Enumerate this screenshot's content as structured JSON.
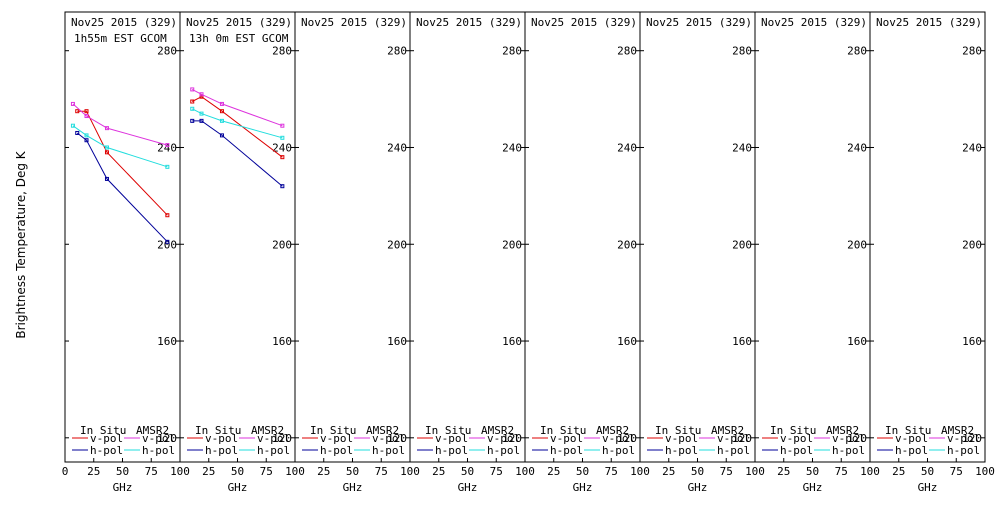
{
  "colors": {
    "insitu_v": "#dd0000",
    "insitu_h": "#000099",
    "amsr2_v": "#dd33dd",
    "amsr2_h": "#22dddd",
    "frame": "#000000",
    "background": "#ffffff"
  },
  "legend": {
    "insitu_header": "In Situ",
    "amsr2_header": "AMSR2",
    "v_label": "v-pol",
    "h_label": "h-pol"
  },
  "chart_data": {
    "type": "line",
    "ylabel": "Brightness Temperature, Deg K",
    "xlabel": "GHz",
    "xlim": [
      0,
      100
    ],
    "ylim": [
      110,
      296
    ],
    "xticks": [
      0,
      25,
      50,
      75,
      100
    ],
    "yticks": [
      120,
      160,
      200,
      240,
      280
    ],
    "grid": false,
    "legend_position": "bottom",
    "panels": [
      {
        "title": "Nov25 2015 (329)",
        "subtitle": "1h55m EST GCOM",
        "series": [
          {
            "key": "insitu_v",
            "name": "In Situ v-pol",
            "x": [
              10.65,
              18.7,
              36.5,
              89.0
            ],
            "y": [
              255,
              255,
              238,
              212
            ]
          },
          {
            "key": "insitu_h",
            "name": "In Situ h-pol",
            "x": [
              10.65,
              18.7,
              36.5,
              89.0
            ],
            "y": [
              246,
              243,
              227,
              201
            ]
          },
          {
            "key": "amsr2_v",
            "name": "AMSR2 v-pol",
            "x": [
              6.9,
              18.7,
              36.5,
              89.0
            ],
            "y": [
              258,
              253,
              248,
              241
            ]
          },
          {
            "key": "amsr2_h",
            "name": "AMSR2 h-pol",
            "x": [
              6.9,
              18.7,
              36.5,
              89.0
            ],
            "y": [
              249,
              245,
              240,
              232
            ]
          }
        ]
      },
      {
        "title": "Nov25 2015 (329)",
        "subtitle": "13h 0m EST GCOM",
        "series": [
          {
            "key": "insitu_v",
            "name": "In Situ v-pol",
            "x": [
              10.65,
              18.7,
              36.5,
              89.0
            ],
            "y": [
              259,
              261,
              255,
              236
            ]
          },
          {
            "key": "insitu_h",
            "name": "In Situ h-pol",
            "x": [
              10.65,
              18.7,
              36.5,
              89.0
            ],
            "y": [
              251,
              251,
              245,
              224
            ]
          },
          {
            "key": "amsr2_v",
            "name": "AMSR2 v-pol",
            "x": [
              10.65,
              18.7,
              36.5,
              89.0
            ],
            "y": [
              264,
              262,
              258,
              249
            ]
          },
          {
            "key": "amsr2_h",
            "name": "AMSR2 h-pol",
            "x": [
              10.65,
              18.7,
              36.5,
              89.0
            ],
            "y": [
              256,
              254,
              251,
              244
            ]
          }
        ]
      },
      {
        "title": "Nov25 2015 (329)",
        "subtitle": "",
        "series": []
      },
      {
        "title": "Nov25 2015 (329)",
        "subtitle": "",
        "series": []
      },
      {
        "title": "Nov25 2015 (329)",
        "subtitle": "",
        "series": []
      },
      {
        "title": "Nov25 2015 (329)",
        "subtitle": "",
        "series": []
      },
      {
        "title": "Nov25 2015 (329)",
        "subtitle": "",
        "series": []
      },
      {
        "title": "Nov25 2015 (329)",
        "subtitle": "",
        "series": []
      }
    ]
  }
}
